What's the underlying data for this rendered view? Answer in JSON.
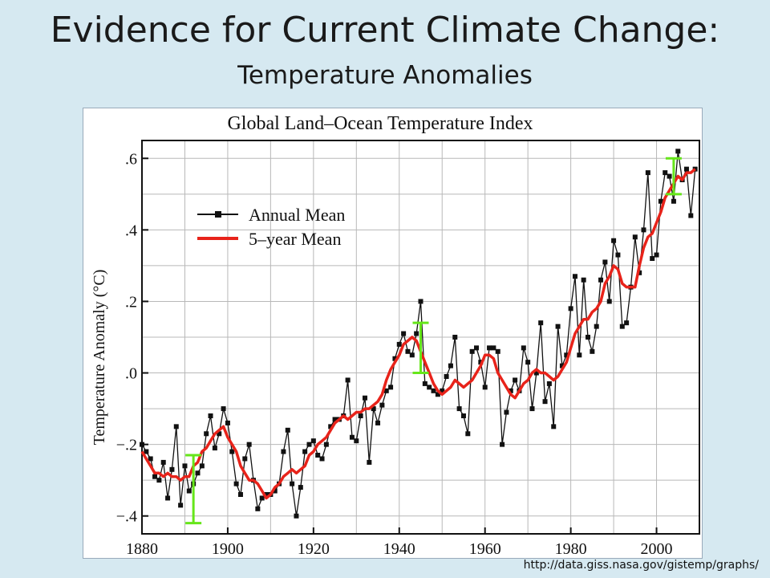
{
  "slide": {
    "title": "Evidence for Current Climate Change:",
    "subtitle": "Temperature Anomalies",
    "source": "http://data.giss.nasa.gov/gistemp/graphs/"
  },
  "chart_data": {
    "type": "line",
    "title": "Global Land–Ocean Temperature Index",
    "xlabel": "",
    "ylabel": "Temperature Anomaly (°C)",
    "xlim": [
      1880,
      2010
    ],
    "ylim": [
      -0.45,
      0.65
    ],
    "x_ticks": [
      1880,
      1900,
      1920,
      1940,
      1960,
      1980,
      2000
    ],
    "x_tick_labels": [
      "1880",
      "1900",
      "1920",
      "1940",
      "1960",
      "1980",
      "2000"
    ],
    "y_ticks": [
      -0.4,
      -0.2,
      0.0,
      0.2,
      0.4,
      0.6
    ],
    "y_tick_labels": [
      "−.4",
      "−.2",
      ".0",
      ".2",
      ".4",
      ".6"
    ],
    "grid": true,
    "legend_position": "top-left",
    "colors": {
      "annual": "#111111",
      "five_year": "#e8231a",
      "error_bars": "#66e61a"
    },
    "x": [
      1880,
      1881,
      1882,
      1883,
      1884,
      1885,
      1886,
      1887,
      1888,
      1889,
      1890,
      1891,
      1892,
      1893,
      1894,
      1895,
      1896,
      1897,
      1898,
      1899,
      1900,
      1901,
      1902,
      1903,
      1904,
      1905,
      1906,
      1907,
      1908,
      1909,
      1910,
      1911,
      1912,
      1913,
      1914,
      1915,
      1916,
      1917,
      1918,
      1919,
      1920,
      1921,
      1922,
      1923,
      1924,
      1925,
      1926,
      1927,
      1928,
      1929,
      1930,
      1931,
      1932,
      1933,
      1934,
      1935,
      1936,
      1937,
      1938,
      1939,
      1940,
      1941,
      1942,
      1943,
      1944,
      1945,
      1946,
      1947,
      1948,
      1949,
      1950,
      1951,
      1952,
      1953,
      1954,
      1955,
      1956,
      1957,
      1958,
      1959,
      1960,
      1961,
      1962,
      1963,
      1964,
      1965,
      1966,
      1967,
      1968,
      1969,
      1970,
      1971,
      1972,
      1973,
      1974,
      1975,
      1976,
      1977,
      1978,
      1979,
      1980,
      1981,
      1982,
      1983,
      1984,
      1985,
      1986,
      1987,
      1988,
      1989,
      1990,
      1991,
      1992,
      1993,
      1994,
      1995,
      1996,
      1997,
      1998,
      1999,
      2000,
      2001,
      2002,
      2003,
      2004,
      2005,
      2006,
      2007,
      2008,
      2009
    ],
    "series": [
      {
        "name": "Annual Mean",
        "values": [
          -0.2,
          -0.22,
          -0.24,
          -0.29,
          -0.3,
          -0.25,
          -0.35,
          -0.27,
          -0.15,
          -0.37,
          -0.26,
          -0.33,
          -0.31,
          -0.28,
          -0.26,
          -0.17,
          -0.12,
          -0.21,
          -0.17,
          -0.1,
          -0.14,
          -0.22,
          -0.31,
          -0.34,
          -0.24,
          -0.2,
          -0.3,
          -0.38,
          -0.35,
          -0.34,
          -0.34,
          -0.33,
          -0.31,
          -0.22,
          -0.16,
          -0.31,
          -0.4,
          -0.32,
          -0.22,
          -0.2,
          -0.19,
          -0.23,
          -0.24,
          -0.2,
          -0.15,
          -0.13,
          -0.13,
          -0.12,
          -0.02,
          -0.18,
          -0.19,
          -0.12,
          -0.07,
          -0.25,
          -0.1,
          -0.14,
          -0.09,
          -0.05,
          -0.04,
          0.04,
          0.08,
          0.11,
          0.06,
          0.05,
          0.11,
          0.2,
          -0.03,
          -0.04,
          -0.05,
          -0.06,
          -0.05,
          -0.01,
          0.02,
          0.1,
          -0.1,
          -0.12,
          -0.17,
          0.06,
          0.07,
          0.03,
          -0.04,
          0.07,
          0.07,
          0.06,
          -0.2,
          -0.11,
          -0.05,
          -0.02,
          -0.05,
          0.07,
          0.03,
          -0.1,
          0.0,
          0.14,
          -0.08,
          -0.03,
          -0.15,
          0.13,
          0.02,
          0.05,
          0.18,
          0.27,
          0.05,
          0.26,
          0.1,
          0.06,
          0.13,
          0.26,
          0.31,
          0.2,
          0.37,
          0.33,
          0.13,
          0.14,
          0.24,
          0.38,
          0.28,
          0.4,
          0.56,
          0.32,
          0.33,
          0.48,
          0.56,
          0.55,
          0.48,
          0.62,
          0.54,
          0.57,
          0.44,
          0.57
        ]
      },
      {
        "name": "5–year Mean",
        "values": [
          -0.22,
          -0.24,
          -0.26,
          -0.28,
          -0.28,
          -0.29,
          -0.28,
          -0.29,
          -0.29,
          -0.3,
          -0.29,
          -0.29,
          -0.26,
          -0.25,
          -0.22,
          -0.21,
          -0.19,
          -0.17,
          -0.16,
          -0.15,
          -0.18,
          -0.2,
          -0.22,
          -0.26,
          -0.28,
          -0.3,
          -0.3,
          -0.31,
          -0.33,
          -0.35,
          -0.34,
          -0.32,
          -0.31,
          -0.29,
          -0.28,
          -0.27,
          -0.28,
          -0.27,
          -0.26,
          -0.23,
          -0.22,
          -0.2,
          -0.19,
          -0.18,
          -0.16,
          -0.14,
          -0.13,
          -0.12,
          -0.13,
          -0.12,
          -0.11,
          -0.11,
          -0.1,
          -0.1,
          -0.09,
          -0.08,
          -0.06,
          -0.02,
          0.01,
          0.03,
          0.05,
          0.08,
          0.09,
          0.1,
          0.09,
          0.06,
          0.03,
          0.0,
          -0.03,
          -0.05,
          -0.06,
          -0.05,
          -0.04,
          -0.02,
          -0.03,
          -0.04,
          -0.03,
          -0.02,
          0.0,
          0.02,
          0.05,
          0.05,
          0.04,
          0.0,
          -0.02,
          -0.04,
          -0.06,
          -0.07,
          -0.05,
          -0.03,
          -0.02,
          0.0,
          0.01,
          0.0,
          0.0,
          -0.01,
          -0.02,
          -0.01,
          0.01,
          0.03,
          0.07,
          0.11,
          0.13,
          0.15,
          0.15,
          0.17,
          0.18,
          0.2,
          0.25,
          0.27,
          0.3,
          0.29,
          0.25,
          0.24,
          0.24,
          0.24,
          0.3,
          0.35,
          0.38,
          0.39,
          0.42,
          0.45,
          0.49,
          0.51,
          0.53,
          0.55,
          0.54,
          0.56,
          0.56,
          0.57
        ]
      }
    ],
    "error_bars": [
      {
        "x": 1892,
        "low": -0.42,
        "high": -0.23
      },
      {
        "x": 1945,
        "low": 0.0,
        "high": 0.14
      },
      {
        "x": 2004,
        "low": 0.5,
        "high": 0.6
      }
    ]
  }
}
